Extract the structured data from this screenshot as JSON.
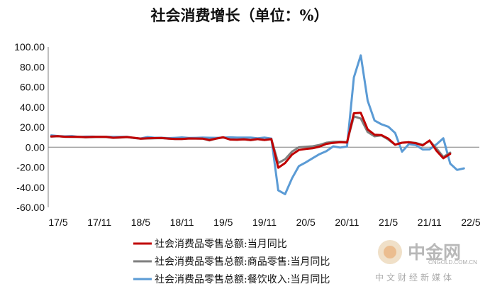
{
  "chart_data": {
    "type": "line",
    "title": "社会消费增长（单位：%）",
    "x_ticks": [
      "17/5",
      "17/11",
      "18/5",
      "18/11",
      "19/5",
      "19/11",
      "20/5",
      "20/11",
      "21/5",
      "21/11",
      "22/5"
    ],
    "ylim": [
      -60,
      100
    ],
    "y_ticks": [
      "100.00",
      "80.00",
      "60.00",
      "40.00",
      "20.00",
      "0.00",
      "-20.00",
      "-40.00",
      "-60.00"
    ],
    "y_tick_values": [
      100,
      80,
      60,
      40,
      20,
      0,
      -20,
      -40,
      -60
    ],
    "grid": false,
    "legend_position": "bottom",
    "series": [
      {
        "name": "社会消费品零售总额:当月同比",
        "color": "#c00000",
        "values": [
          10.7,
          11.0,
          10.4,
          10.4,
          10.3,
          10.0,
          10.2,
          10.3,
          10.2,
          9.4,
          9.7,
          10.1,
          9.4,
          8.5,
          8.8,
          9.0,
          9.2,
          8.6,
          8.1,
          8.2,
          8.7,
          8.6,
          8.5,
          7.2,
          8.6,
          9.8,
          7.6,
          7.5,
          7.8,
          7.2,
          8.0,
          7.2,
          8.0,
          -20.5,
          -15.8,
          -7.5,
          -2.8,
          -1.8,
          -1.1,
          0.5,
          3.3,
          4.3,
          5.0,
          4.6,
          33.8,
          34.2,
          17.7,
          12.4,
          12.1,
          8.5,
          2.5,
          4.4,
          4.9,
          3.9,
          1.7,
          6.7,
          -3.5,
          -11.1,
          -6.7
        ],
        "start": "17/4"
      },
      {
        "name": "社会消费品零售总额:商品零售:当月同比",
        "color": "#7f7f7f",
        "values": [
          10.5,
          10.9,
          10.4,
          10.3,
          10.2,
          9.8,
          10.0,
          10.2,
          10.1,
          9.3,
          9.6,
          10.1,
          9.2,
          8.4,
          8.7,
          8.9,
          9.0,
          8.5,
          8.1,
          8.1,
          8.6,
          8.6,
          8.5,
          6.7,
          8.6,
          9.9,
          7.6,
          7.4,
          7.9,
          7.0,
          8.0,
          7.2,
          8.0,
          -15.8,
          -12.0,
          -4.4,
          -0.1,
          0.3,
          0.9,
          2.2,
          4.4,
          5.3,
          5.4,
          5.2,
          30.7,
          28.6,
          15.1,
          10.8,
          11.7,
          7.6,
          2.4,
          4.4,
          5.0,
          4.2,
          2.3,
          6.3,
          -1.2,
          -9.7,
          -5.4
        ],
        "start": "17/4"
      },
      {
        "name": "社会消费品零售总额:餐饮收入:当月同比",
        "color": "#5b9bd5",
        "values": [
          11.8,
          11.1,
          10.8,
          11.1,
          10.2,
          10.5,
          10.5,
          10.4,
          10.4,
          10.3,
          10.2,
          10.4,
          9.1,
          8.7,
          10.1,
          9.4,
          9.4,
          9.0,
          9.3,
          9.7,
          9.2,
          9.3,
          9.6,
          9.4,
          9.3,
          9.6,
          9.8,
          9.5,
          9.6,
          9.5,
          8.8,
          9.6,
          8.6,
          -43.1,
          -46.8,
          -31.1,
          -18.9,
          -15.2,
          -11.0,
          -7.0,
          -4.0,
          0.8,
          -0.4,
          0.6,
          69.6,
          91.6,
          46.4,
          26.6,
          22.8,
          20.4,
          14.1,
          -4.5,
          3.1,
          2.0,
          -2.3,
          -2.2,
          2.7,
          8.9,
          -16.4,
          -22.7,
          -21.1
        ],
        "start": "17/4"
      }
    ]
  },
  "watermark": {
    "name": "中金网",
    "domain": "CNGOLD.COM.CN",
    "subtitle": "中文财经新媒体"
  }
}
